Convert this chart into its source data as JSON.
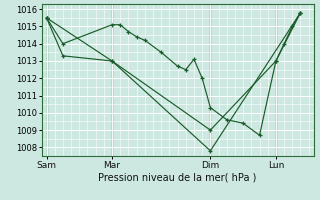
{
  "xlabel": "Pression niveau de la mer( hPa )",
  "ylim": [
    1007.5,
    1016.3
  ],
  "yticks": [
    1008,
    1009,
    1010,
    1011,
    1012,
    1013,
    1014,
    1015,
    1016
  ],
  "xtick_labels": [
    "Sam",
    "Mar",
    "Dim",
    "Lun"
  ],
  "xtick_positions": [
    0,
    4,
    10,
    14
  ],
  "xlim": [
    -0.3,
    16.3
  ],
  "bg_color": "#cce8e0",
  "grid_color": "#ffffff",
  "line_color": "#1a5c2a",
  "line1_x": [
    0,
    1,
    4,
    4.5,
    5,
    5.5,
    6,
    7,
    8,
    8.5,
    9,
    9.5,
    10,
    11,
    12,
    13,
    14,
    14.5,
    15,
    15.5
  ],
  "line1_y": [
    1015.5,
    1014.0,
    1015.1,
    1015.1,
    1014.7,
    1014.4,
    1014.2,
    1013.5,
    1012.7,
    1012.5,
    1013.1,
    1012.0,
    1010.3,
    1009.6,
    1009.4,
    1008.7,
    1013.0,
    1014.0,
    1015.0,
    1015.8
  ],
  "line2_x": [
    0,
    1,
    4,
    10,
    14,
    15.5
  ],
  "line2_y": [
    1015.5,
    1013.3,
    1013.0,
    1009.0,
    1013.0,
    1015.8
  ],
  "line3_x": [
    0,
    4,
    10,
    15.5
  ],
  "line3_y": [
    1015.5,
    1013.0,
    1007.8,
    1015.8
  ],
  "vline_positions": [
    0,
    4,
    10,
    14
  ]
}
